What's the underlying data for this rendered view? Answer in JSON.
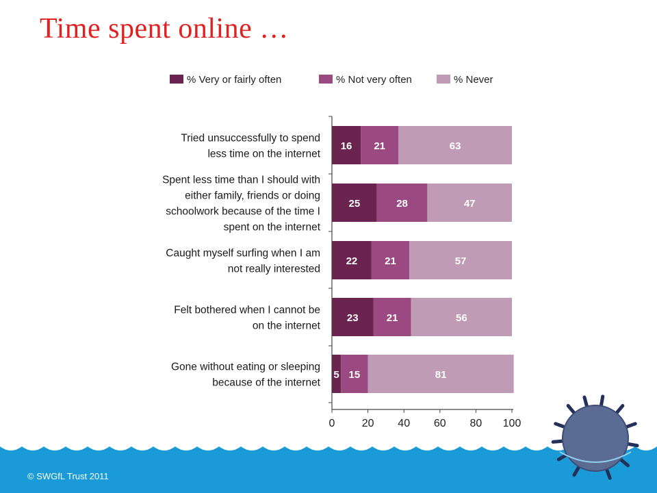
{
  "slide": {
    "title": "Time spent online …",
    "footer": "© SWGfL Trust 2011",
    "wave_color": "#1a9bd7",
    "mascot_color": "#5a6b94"
  },
  "chart_data": {
    "type": "bar",
    "orientation": "horizontal",
    "stacked": true,
    "categories": [
      "Tried unsuccessfully to spend less time on the internet",
      "Spent less time than I should with either family, friends or doing schoolwork because of the time I spent on the internet",
      "Caught myself surfing when I am not really interested",
      "Felt bothered when I cannot be on the internet",
      "Gone without eating or sleeping because of the internet"
    ],
    "category_lines": [
      [
        "Tried unsuccessfully to spend",
        "less time on the internet"
      ],
      [
        "Spent less time than I should with",
        "either family, friends or doing",
        "schoolwork because of the time I",
        "spent on the internet"
      ],
      [
        "Caught myself surfing when I am",
        "not really interested"
      ],
      [
        "Felt bothered when I cannot be",
        "on the internet"
      ],
      [
        "Gone without eating or sleeping",
        "because of the internet"
      ]
    ],
    "series": [
      {
        "name": "% Very or fairly often",
        "color": "#6b2350",
        "values": [
          16,
          25,
          22,
          23,
          5
        ]
      },
      {
        "name": "% Not very often",
        "color": "#9a4a80",
        "values": [
          21,
          28,
          21,
          21,
          15
        ]
      },
      {
        "name": "% Never",
        "color": "#bf9bb5",
        "values": [
          63,
          47,
          57,
          56,
          81
        ]
      }
    ],
    "xlim": [
      0,
      100
    ],
    "xticks": [
      0,
      20,
      40,
      60,
      80,
      100
    ],
    "legend_position": "top",
    "grid": false
  }
}
